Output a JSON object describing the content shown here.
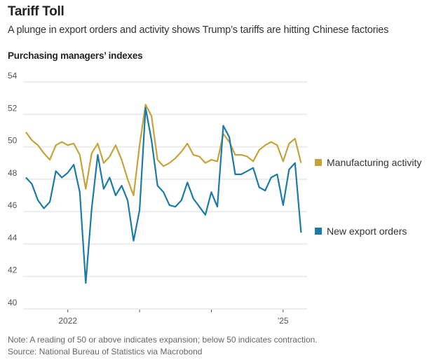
{
  "header": {
    "title": "Tariff Toll",
    "subtitle": "A plunge in export orders and activity shows Trump’s tariffs are hitting Chinese factories",
    "section_label": "Purchasing managers’ indexes"
  },
  "footer": {
    "note": "Note: A reading of 50 or above indicates expansion; below 50 indicates contraction.",
    "source": "Source: National Bureau of Statistics via Macrobond"
  },
  "colors": {
    "manufacturing": "#c4a43a",
    "export": "#1a7ba8",
    "grid": "#ececec",
    "axis_text": "#555555"
  },
  "chart_data": {
    "type": "line",
    "title": "Purchasing managers’ indexes",
    "xlabel": "",
    "ylabel": "",
    "ylim": [
      40,
      54
    ],
    "yticks": [
      54,
      52,
      50,
      48,
      46,
      44,
      42,
      40
    ],
    "grid": true,
    "x_start": "2021-06",
    "x_end": "2025-04",
    "xticks": [
      {
        "label": "2022",
        "month_index": 7
      },
      {
        "label": "",
        "month_index": 43
      },
      {
        "label": "'25",
        "month_index": 43
      }
    ],
    "xtick_marks": [
      7,
      43,
      19,
      31
    ],
    "legend_placement": "right",
    "series": [
      {
        "name": "Manufacturing activity",
        "color": "#c4a43a",
        "values": [
          50.9,
          50.4,
          50.1,
          49.6,
          49.2,
          50.1,
          50.3,
          50.1,
          50.2,
          49.5,
          47.4,
          49.6,
          50.2,
          49.0,
          49.4,
          50.1,
          49.2,
          48.0,
          47.0,
          50.1,
          52.6,
          51.9,
          49.2,
          48.8,
          49.0,
          49.3,
          49.7,
          50.2,
          49.5,
          49.4,
          49.0,
          49.2,
          49.1,
          50.8,
          50.3,
          49.5,
          49.5,
          49.4,
          49.1,
          49.8,
          50.1,
          50.3,
          50.1,
          49.1,
          50.2,
          50.5,
          49.0
        ]
      },
      {
        "name": "New export orders",
        "color": "#1a7ba8",
        "values": [
          48.1,
          47.7,
          46.7,
          46.2,
          46.6,
          48.5,
          48.1,
          48.4,
          48.9,
          47.2,
          41.6,
          46.2,
          49.5,
          47.4,
          48.1,
          47.0,
          47.6,
          46.7,
          44.2,
          46.1,
          52.4,
          50.4,
          47.6,
          47.2,
          46.4,
          46.3,
          46.7,
          47.8,
          46.8,
          46.3,
          45.8,
          47.2,
          46.3,
          51.3,
          50.6,
          48.3,
          48.3,
          48.5,
          48.7,
          47.5,
          47.3,
          48.1,
          48.3,
          46.4,
          48.6,
          49.0,
          44.7
        ]
      }
    ]
  }
}
